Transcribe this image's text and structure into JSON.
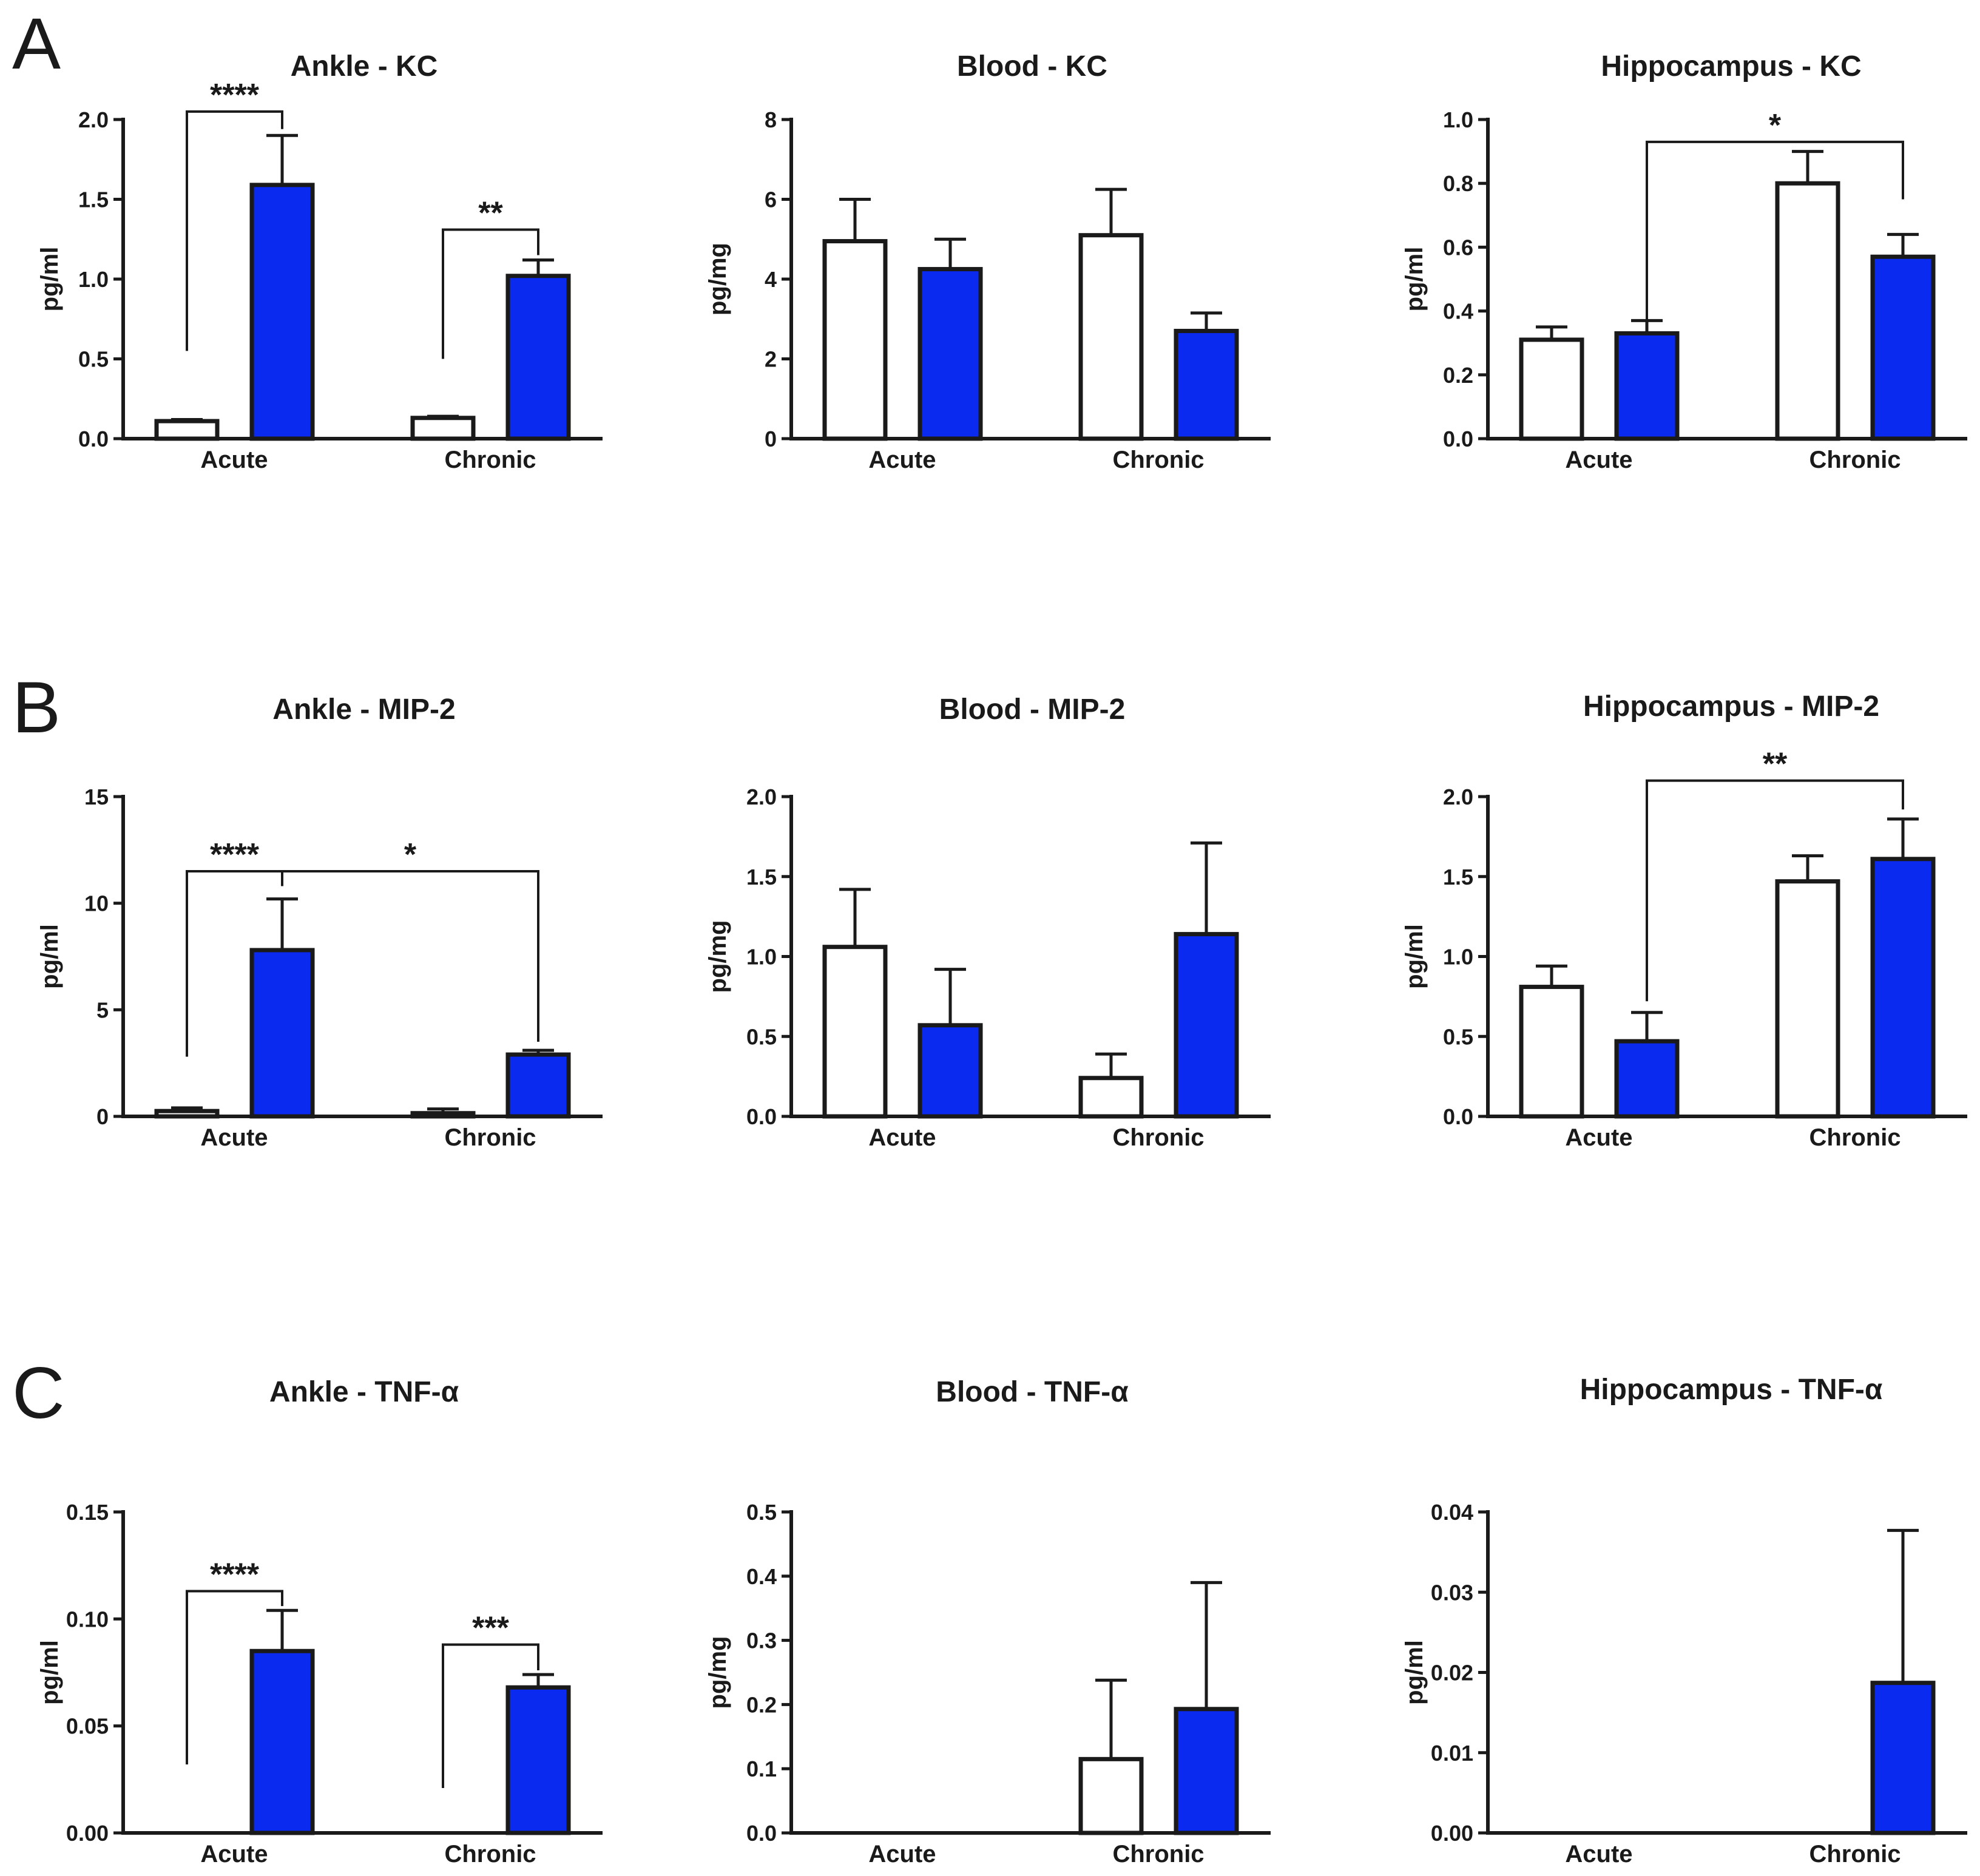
{
  "panel_letters": [
    "A",
    "B",
    "C"
  ],
  "colors": {
    "control": "#ffffff",
    "treated": "#0a2af0",
    "ink": "#1a1a1a"
  },
  "chart_data": [
    {
      "type": "bar",
      "panel": "A",
      "title": "Ankle - KC",
      "ylabel": "pg/ml",
      "categories": [
        "Acute",
        "Chronic"
      ],
      "ylim": [
        0,
        2.0
      ],
      "yticks": [
        0,
        0.5,
        1.0,
        1.5,
        2.0
      ],
      "ytick_labels": [
        "0.0",
        "0.5",
        "1.0",
        "1.5",
        "2.0"
      ],
      "series": [
        {
          "color": "#ffffff",
          "values": [
            0.11,
            0.13
          ],
          "errors": [
            0.01,
            0.01
          ]
        },
        {
          "color": "#0a2af0",
          "values": [
            1.59,
            1.02
          ],
          "errors": [
            0.31,
            0.1
          ]
        }
      ],
      "significance": [
        {
          "label": "****",
          "from": [
            0,
            0
          ],
          "to": [
            0,
            1
          ],
          "y": 2.05,
          "y_from": 0.55,
          "y_to": 1.94
        },
        {
          "label": "**",
          "from": [
            1,
            0
          ],
          "to": [
            1,
            1
          ],
          "y": 1.31,
          "y_from": 0.5,
          "y_to": 1.15
        }
      ]
    },
    {
      "type": "bar",
      "panel": "A",
      "title": "Blood - KC",
      "ylabel": "pg/mg",
      "categories": [
        "Acute",
        "Chronic"
      ],
      "ylim": [
        0,
        8
      ],
      "yticks": [
        0,
        2,
        4,
        6,
        8
      ],
      "ytick_labels": [
        "0",
        "2",
        "4",
        "6",
        "8"
      ],
      "series": [
        {
          "color": "#ffffff",
          "values": [
            4.95,
            5.1
          ],
          "errors": [
            1.05,
            1.15
          ]
        },
        {
          "color": "#0a2af0",
          "values": [
            4.25,
            2.7
          ],
          "errors": [
            0.75,
            0.45
          ]
        }
      ],
      "significance": []
    },
    {
      "type": "bar",
      "panel": "A",
      "title": "Hippocampus - KC",
      "ylabel": "pg/ml",
      "categories": [
        "Acute",
        "Chronic"
      ],
      "ylim": [
        0,
        1.0
      ],
      "yticks": [
        0,
        0.2,
        0.4,
        0.6,
        0.8,
        1.0
      ],
      "ytick_labels": [
        "0.0",
        "0.2",
        "0.4",
        "0.6",
        "0.8",
        "1.0"
      ],
      "series": [
        {
          "color": "#ffffff",
          "values": [
            0.31,
            0.8
          ],
          "errors": [
            0.04,
            0.1
          ]
        },
        {
          "color": "#0a2af0",
          "values": [
            0.33,
            0.57
          ],
          "errors": [
            0.04,
            0.07
          ]
        }
      ],
      "significance": [
        {
          "label": "*",
          "from": [
            0,
            1
          ],
          "to": [
            1,
            1
          ],
          "y": 0.93,
          "y_from": 0.36,
          "y_to": 0.75
        }
      ]
    },
    {
      "type": "bar",
      "panel": "B",
      "title": "Ankle - MIP-2",
      "ylabel": "pg/ml",
      "categories": [
        "Acute",
        "Chronic"
      ],
      "ylim": [
        0,
        15
      ],
      "yticks": [
        0,
        5,
        10,
        15
      ],
      "ytick_labels": [
        "0",
        "5",
        "10",
        "15"
      ],
      "series": [
        {
          "color": "#ffffff",
          "values": [
            0.25,
            0.15
          ],
          "errors": [
            0.15,
            0.2
          ]
        },
        {
          "color": "#0a2af0",
          "values": [
            7.8,
            2.9
          ],
          "errors": [
            2.4,
            0.2
          ]
        }
      ],
      "significance": [
        {
          "label": "****",
          "from": [
            0,
            0
          ],
          "to": [
            0,
            1
          ],
          "y": 11.5,
          "y_from": 2.8,
          "y_to": 10.8
        },
        {
          "label": "*",
          "from": [
            0,
            1
          ],
          "to": [
            1,
            1
          ],
          "y": 11.5,
          "y_from": 10.8,
          "y_to": 3.5
        }
      ]
    },
    {
      "type": "bar",
      "panel": "B",
      "title": "Blood - MIP-2",
      "ylabel": "pg/mg",
      "categories": [
        "Acute",
        "Chronic"
      ],
      "ylim": [
        0,
        2.0
      ],
      "yticks": [
        0,
        0.5,
        1.0,
        1.5,
        2.0
      ],
      "ytick_labels": [
        "0.0",
        "0.5",
        "1.0",
        "1.5",
        "2.0"
      ],
      "series": [
        {
          "color": "#ffffff",
          "values": [
            1.06,
            0.24
          ],
          "errors": [
            0.36,
            0.15
          ]
        },
        {
          "color": "#0a2af0",
          "values": [
            0.57,
            1.14
          ],
          "errors": [
            0.35,
            0.57
          ]
        }
      ],
      "significance": []
    },
    {
      "type": "bar",
      "panel": "B",
      "title": "Hippocampus -  MIP-2",
      "ylabel": "pg/ml",
      "categories": [
        "Acute",
        "Chronic"
      ],
      "ylim": [
        0,
        2.0
      ],
      "yticks": [
        0,
        0.5,
        1.0,
        1.5,
        2.0
      ],
      "ytick_labels": [
        "0.0",
        "0.5",
        "1.0",
        "1.5",
        "2.0"
      ],
      "series": [
        {
          "color": "#ffffff",
          "values": [
            0.81,
            1.47
          ],
          "errors": [
            0.13,
            0.16
          ]
        },
        {
          "color": "#0a2af0",
          "values": [
            0.47,
            1.61
          ],
          "errors": [
            0.18,
            0.25
          ]
        }
      ],
      "significance": [
        {
          "label": "**",
          "from": [
            0,
            1
          ],
          "to": [
            1,
            1
          ],
          "y": 2.1,
          "y_from": 0.72,
          "y_to": 1.92
        }
      ]
    },
    {
      "type": "bar",
      "panel": "C",
      "title": "Ankle - TNF-α",
      "ylabel": "pg/ml",
      "categories": [
        "Acute",
        "Chronic"
      ],
      "ylim": [
        0,
        0.15
      ],
      "yticks": [
        0,
        0.05,
        0.1,
        0.15
      ],
      "ytick_labels": [
        "0.00",
        "0.05",
        "0.10",
        "0.15"
      ],
      "series": [
        {
          "color": "#ffffff",
          "values": [
            0,
            0
          ],
          "errors": [
            0,
            0
          ]
        },
        {
          "color": "#0a2af0",
          "values": [
            0.085,
            0.068
          ],
          "errors": [
            0.019,
            0.006
          ]
        }
      ],
      "significance": [
        {
          "label": "****",
          "from": [
            0,
            0
          ],
          "to": [
            0,
            1
          ],
          "y": 0.113,
          "y_from": 0.032,
          "y_to": 0.106
        },
        {
          "label": "***",
          "from": [
            1,
            0
          ],
          "to": [
            1,
            1
          ],
          "y": 0.088,
          "y_from": 0.021,
          "y_to": 0.076
        }
      ]
    },
    {
      "type": "bar",
      "panel": "C",
      "title": "Blood - TNF-α",
      "ylabel": "pg/mg",
      "categories": [
        "Acute",
        "Chronic"
      ],
      "ylim": [
        0,
        0.5
      ],
      "yticks": [
        0,
        0.1,
        0.2,
        0.3,
        0.4,
        0.5
      ],
      "ytick_labels": [
        "0.0",
        "0.1",
        "0.2",
        "0.3",
        "0.4",
        "0.5"
      ],
      "series": [
        {
          "color": "#ffffff",
          "values": [
            0,
            0.115
          ],
          "errors": [
            0,
            0.123
          ]
        },
        {
          "color": "#0a2af0",
          "values": [
            0,
            0.193
          ],
          "errors": [
            0,
            0.197
          ]
        }
      ],
      "significance": []
    },
    {
      "type": "bar",
      "panel": "C",
      "title": "Hippocampus - TNF-α",
      "ylabel": "pg/ml",
      "categories": [
        "Acute",
        "Chronic"
      ],
      "ylim": [
        0,
        0.04
      ],
      "yticks": [
        0,
        0.01,
        0.02,
        0.03,
        0.04
      ],
      "ytick_labels": [
        "0.00",
        "0.01",
        "0.02",
        "0.03",
        "0.04"
      ],
      "series": [
        {
          "color": "#ffffff",
          "values": [
            0,
            0
          ],
          "errors": [
            0,
            0
          ]
        },
        {
          "color": "#0a2af0",
          "values": [
            0,
            0.0187
          ],
          "errors": [
            0,
            0.019
          ]
        }
      ],
      "significance": []
    }
  ]
}
